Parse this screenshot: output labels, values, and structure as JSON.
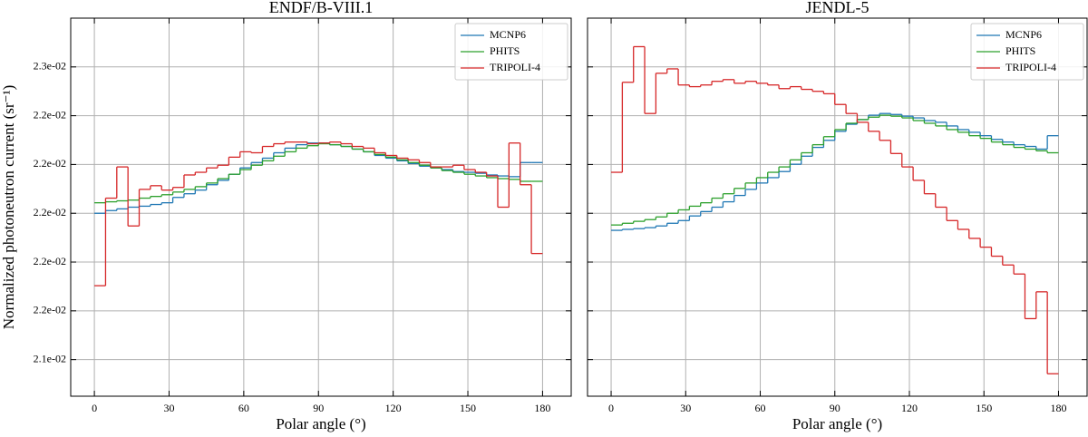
{
  "chart_data": [
    {
      "type": "histogram",
      "title": "ENDF/B-VIII.1",
      "xlabel": "Polar angle (°)",
      "ylabel": "Normalized photoneutron current (sr⁻¹)",
      "bins": [
        0,
        4.5,
        9,
        13.5,
        18,
        22.5,
        27,
        31.5,
        36,
        40.5,
        45,
        49.5,
        54,
        58.5,
        63,
        67.5,
        72,
        76.5,
        81,
        85.5,
        90,
        94.5,
        99,
        103.5,
        108,
        112.5,
        117,
        121.5,
        126,
        130.5,
        135,
        139.5,
        144,
        148.5,
        153,
        157.5,
        162,
        166.5,
        171,
        175.5,
        180
      ],
      "xlim": [
        -9.5,
        191.5
      ],
      "xticks": [
        0,
        30,
        60,
        90,
        120,
        150,
        180
      ],
      "ylim": [
        0.02125,
        0.0228
      ],
      "yticks": [
        {
          "value": 0.0214,
          "label": "2.1e-02"
        },
        {
          "value": 0.0216,
          "label": "2.2e-02"
        },
        {
          "value": 0.0218,
          "label": "2.2e-02"
        },
        {
          "value": 0.022,
          "label": "2.2e-02"
        },
        {
          "value": 0.0222,
          "label": "2.2e-02"
        },
        {
          "value": 0.0224,
          "label": "2.2e-02"
        },
        {
          "value": 0.0226,
          "label": "2.3e-02"
        }
      ],
      "grid": true,
      "legend": "upper right",
      "series": [
        {
          "name": "MCNP6",
          "color": "#1f77b4",
          "values": [
            0.022,
            0.022011,
            0.022018,
            0.022025,
            0.022029,
            0.022036,
            0.022043,
            0.022065,
            0.02208,
            0.022095,
            0.022117,
            0.022135,
            0.02216,
            0.022186,
            0.022208,
            0.022226,
            0.022248,
            0.022267,
            0.022281,
            0.022288,
            0.022288,
            0.022281,
            0.022274,
            0.022263,
            0.022252,
            0.022237,
            0.022226,
            0.022215,
            0.022204,
            0.022193,
            0.022186,
            0.022179,
            0.022171,
            0.022168,
            0.022164,
            0.022157,
            0.022153,
            0.02215,
            0.022208,
            0.022208
          ]
        },
        {
          "name": "PHITS",
          "color": "#2ca02c",
          "values": [
            0.022043,
            0.022047,
            0.022051,
            0.022054,
            0.022062,
            0.022069,
            0.022076,
            0.022087,
            0.022098,
            0.022109,
            0.022124,
            0.022142,
            0.02216,
            0.022179,
            0.022197,
            0.022215,
            0.022234,
            0.022252,
            0.022267,
            0.022277,
            0.022285,
            0.022281,
            0.022274,
            0.022263,
            0.022252,
            0.022241,
            0.02223,
            0.022219,
            0.022208,
            0.022197,
            0.022186,
            0.022175,
            0.022168,
            0.02216,
            0.022153,
            0.022146,
            0.022142,
            0.022139,
            0.022131,
            0.022131
          ]
        },
        {
          "name": "TRIPOLI-4",
          "color": "#d62728",
          "values": [
            0.021703,
            0.022062,
            0.02219,
            0.021948,
            0.022098,
            0.022113,
            0.022095,
            0.022106,
            0.022157,
            0.022168,
            0.022186,
            0.022197,
            0.02223,
            0.022252,
            0.022248,
            0.022274,
            0.022285,
            0.022292,
            0.022292,
            0.022285,
            0.022288,
            0.022292,
            0.022285,
            0.022274,
            0.022267,
            0.022248,
            0.022237,
            0.022226,
            0.022219,
            0.022208,
            0.02219,
            0.02219,
            0.022197,
            0.022179,
            0.022168,
            0.022153,
            0.022025,
            0.022288,
            0.022117,
            0.021835
          ]
        }
      ]
    },
    {
      "type": "histogram",
      "title": "JENDL-5",
      "xlabel": "Polar angle (°)",
      "sharey": true,
      "bins": [
        0,
        4.5,
        9,
        13.5,
        18,
        22.5,
        27,
        31.5,
        36,
        40.5,
        45,
        49.5,
        54,
        58.5,
        63,
        67.5,
        72,
        76.5,
        81,
        85.5,
        90,
        94.5,
        99,
        103.5,
        108,
        112.5,
        117,
        121.5,
        126,
        130.5,
        135,
        139.5,
        144,
        148.5,
        153,
        157.5,
        162,
        166.5,
        171,
        175.5,
        180
      ],
      "xlim": [
        -9.5,
        191.5
      ],
      "xticks": [
        0,
        30,
        60,
        90,
        120,
        150,
        180
      ],
      "grid": true,
      "legend": "upper right",
      "series": [
        {
          "name": "MCNP6",
          "color": "#1f77b4",
          "values": [
            0.02193,
            0.021934,
            0.021937,
            0.021941,
            0.021948,
            0.021959,
            0.02197,
            0.021989,
            0.022007,
            0.022025,
            0.022047,
            0.022073,
            0.022098,
            0.022124,
            0.022146,
            0.022171,
            0.022201,
            0.022234,
            0.02227,
            0.022299,
            0.022336,
            0.022365,
            0.022384,
            0.022402,
            0.022409,
            0.022405,
            0.022398,
            0.022391,
            0.02238,
            0.022373,
            0.022358,
            0.022343,
            0.022332,
            0.022318,
            0.022303,
            0.022292,
            0.022281,
            0.022274,
            0.022263,
            0.022318
          ]
        },
        {
          "name": "PHITS",
          "color": "#2ca02c",
          "values": [
            0.021952,
            0.021959,
            0.021967,
            0.021974,
            0.021985,
            0.022,
            0.022014,
            0.022029,
            0.022043,
            0.022062,
            0.02208,
            0.022102,
            0.022124,
            0.022146,
            0.022168,
            0.02219,
            0.022219,
            0.022248,
            0.022281,
            0.022314,
            0.022343,
            0.022369,
            0.022384,
            0.022394,
            0.022402,
            0.022398,
            0.022391,
            0.02238,
            0.022369,
            0.022358,
            0.022343,
            0.022332,
            0.022318,
            0.022307,
            0.022292,
            0.022281,
            0.02227,
            0.022263,
            0.022256,
            0.022248
          ]
        },
        {
          "name": "TRIPOLI-4",
          "color": "#d62728",
          "values": [
            0.022168,
            0.022537,
            0.022683,
            0.022409,
            0.022574,
            0.022592,
            0.022526,
            0.022519,
            0.022526,
            0.022541,
            0.022548,
            0.022533,
            0.022541,
            0.022533,
            0.022526,
            0.022511,
            0.022519,
            0.022508,
            0.0225,
            0.02249,
            0.022446,
            0.022409,
            0.022373,
            0.022336,
            0.022299,
            0.022245,
            0.02219,
            0.022135,
            0.02208,
            0.022025,
            0.02197,
            0.021934,
            0.021897,
            0.021861,
            0.021824,
            0.021788,
            0.021751,
            0.021568,
            0.021678,
            0.021342
          ]
        }
      ]
    }
  ]
}
